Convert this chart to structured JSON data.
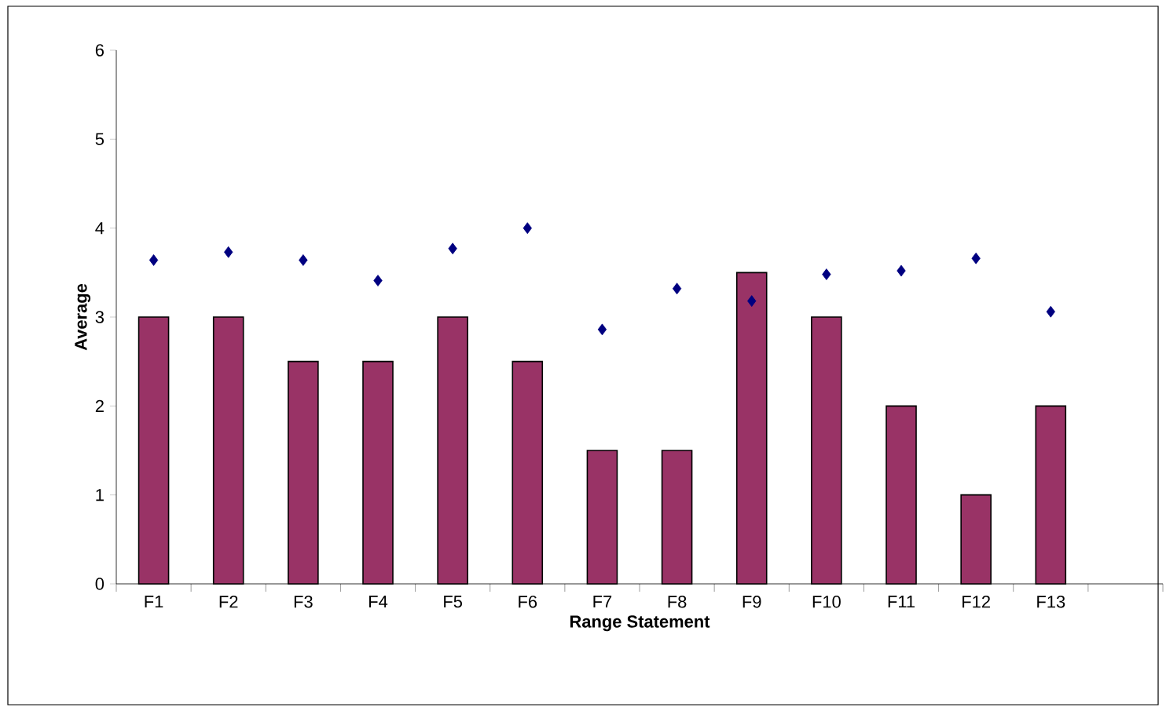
{
  "chart_data": {
    "type": "bar",
    "xlabel": "Range Statement",
    "ylabel": "Average",
    "categories": [
      "F1",
      "F2",
      "F3",
      "F4",
      "F5",
      "F6",
      "F7",
      "F8",
      "F9",
      "F10",
      "F11",
      "F12",
      "F13",
      null
    ],
    "series": [
      {
        "color": "#993366",
        "values": [
          3,
          3,
          2.5,
          2.5,
          3,
          2.5,
          1.5,
          1.5,
          3.5,
          3,
          2,
          1,
          2,
          null
        ]
      },
      {
        "type": "scatter",
        "color": "#000080",
        "values": [
          3.64,
          3.73,
          3.64,
          3.41,
          3.77,
          4.0,
          2.86,
          3.32,
          3.18,
          3.48,
          3.52,
          3.66,
          3.06,
          null
        ]
      }
    ],
    "ylim": [
      0,
      6
    ],
    "yticks": [
      0,
      1,
      2,
      3,
      4,
      5,
      6
    ],
    "marker": "diamond"
  }
}
